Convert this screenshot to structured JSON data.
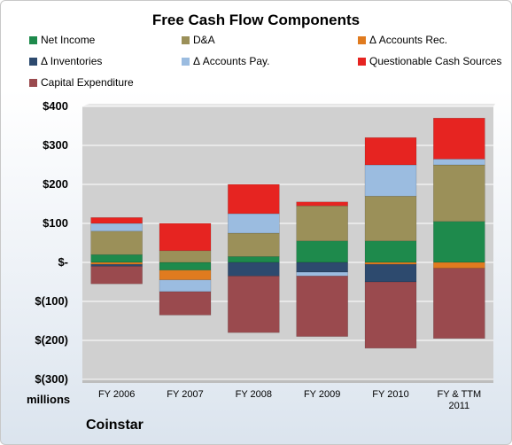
{
  "chart_data": {
    "type": "bar",
    "stacked": true,
    "title": "Free Cash Flow Components",
    "categories": [
      "FY 2006",
      "FY 2007",
      "FY 2008",
      "FY 2009",
      "FY 2010",
      "FY & TTM\n2011"
    ],
    "ylim": [
      -300,
      400
    ],
    "yticks": [
      400,
      300,
      200,
      100,
      0,
      -100,
      -200,
      -300
    ],
    "ytick_labels": [
      "$400",
      "$300",
      "$200",
      "$100",
      "$-",
      "$(100)",
      "$(200)",
      "$(300)"
    ],
    "units_label": "millions",
    "grid": true,
    "legend_position": "top",
    "series": [
      {
        "name": "Net Income",
        "color": "#1e8a4c",
        "values": [
          20,
          -20,
          15,
          55,
          55,
          105
        ]
      },
      {
        "name": "D&A",
        "color": "#9b9059",
        "values": [
          60,
          30,
          60,
          90,
          115,
          145
        ]
      },
      {
        "name": "Δ Accounts Rec.",
        "color": "#e07b1f",
        "values": [
          -5,
          -25,
          0,
          0,
          -5,
          -15
        ]
      },
      {
        "name": "Δ Inventories",
        "color": "#2d4a6e",
        "values": [
          -5,
          0,
          -35,
          -25,
          -45,
          0
        ]
      },
      {
        "name": "Δ Accounts Pay.",
        "color": "#9bbce0",
        "values": [
          20,
          -30,
          50,
          -10,
          80,
          15
        ]
      },
      {
        "name": "Questionable Cash Sources",
        "color": "#e62421",
        "values": [
          15,
          70,
          75,
          10,
          70,
          105
        ]
      },
      {
        "name": "Capital Expenditure",
        "color": "#9a4a4e",
        "values": [
          -45,
          -60,
          -145,
          -155,
          -170,
          -180
        ]
      }
    ]
  },
  "footer": {
    "company": "Coinstar"
  }
}
